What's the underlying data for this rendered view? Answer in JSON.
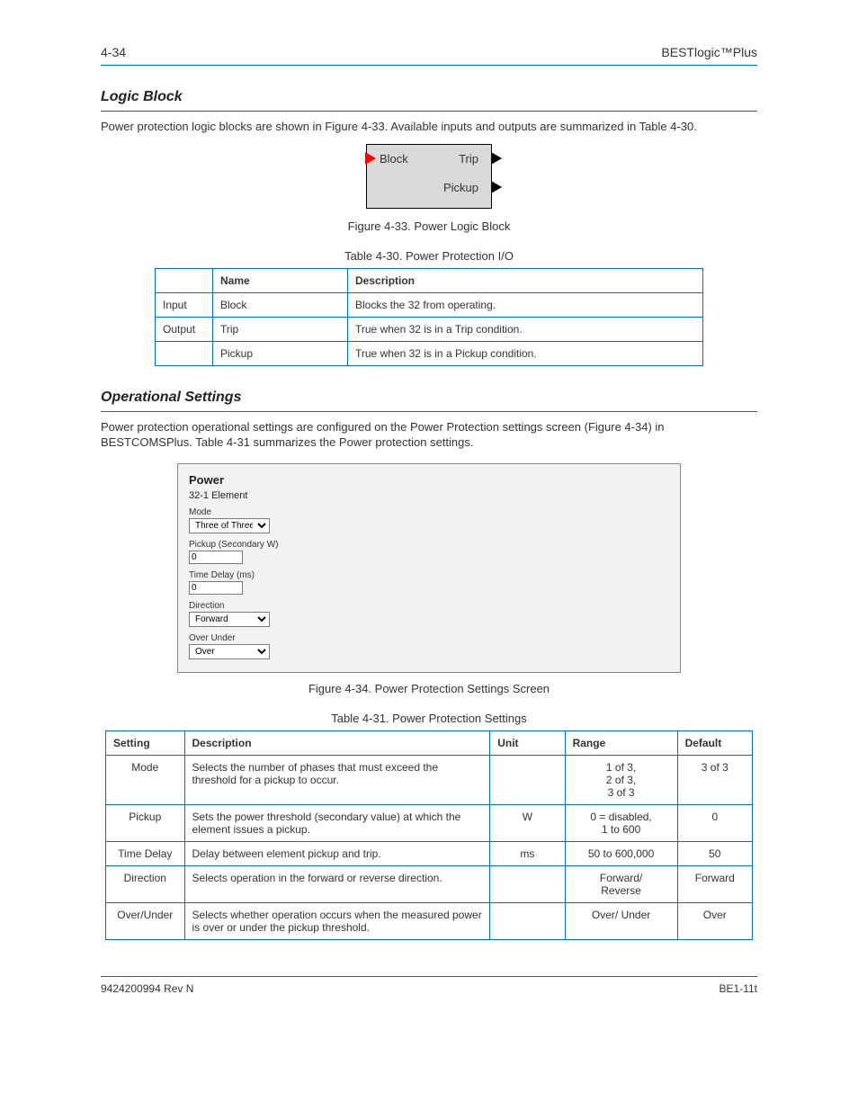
{
  "header": {
    "left": "4-34",
    "right": "BESTlogic™Plus"
  },
  "footer": {
    "left": "9424200994 Rev N",
    "right": "BE1-11t"
  },
  "section_logic": {
    "title": "Logic Block",
    "para": "Power protection logic blocks are shown in Figure 4-33. Available inputs and outputs are summarized in Table 4-30.",
    "ports": {
      "block": "Block",
      "trip": "Trip",
      "pickup": "Pickup"
    },
    "fig_caption": "Figure 4-33. Power Logic Block",
    "tbl_caption": "Table 4-30. Power Protection I/O",
    "io": {
      "headers": [
        "",
        "Name",
        "Description"
      ],
      "rows": [
        [
          "Input",
          "Block",
          "Blocks the 32 from operating."
        ],
        [
          "Output",
          "Trip",
          "True when 32 is in a Trip condition."
        ],
        [
          "",
          "Pickup",
          "True when 32 is in a Pickup condition."
        ]
      ]
    }
  },
  "section_settings": {
    "title": "Operational Settings",
    "para1": "Power protection operational settings are configured on the Power Protection settings screen (Figure 4-34) in BESTCOMSPlus. Table 4-31 summarizes the Power protection settings.",
    "panel": {
      "box_title": "Power",
      "element": "32-1 Element",
      "fields": [
        {
          "label": "Mode",
          "type": "select",
          "value": "Three of Three"
        },
        {
          "label": "Pickup (Secondary W)",
          "type": "input",
          "value": "0"
        },
        {
          "label": "Time Delay (ms)",
          "type": "input",
          "value": "0"
        },
        {
          "label": "Direction",
          "type": "select",
          "value": "Forward"
        },
        {
          "label": "Over Under",
          "type": "select",
          "value": "Over"
        }
      ]
    },
    "fig_caption": "Figure 4-34. Power Protection Settings Screen",
    "tbl_caption": "Table 4-31. Power Protection Settings",
    "settings": {
      "headers": [
        "Setting",
        "Description",
        "Unit",
        "Range",
        "Default"
      ],
      "rows": [
        [
          "Mode",
          "Selects the number of phases that must exceed the threshold for a pickup to occur.",
          "",
          "1 of 3,\n2 of 3,\n3 of 3",
          "3 of 3"
        ],
        [
          "Pickup",
          "Sets the power threshold (secondary value) at which the element issues a pickup.",
          "W",
          "0 = disabled,\n1 to 600",
          "0"
        ],
        [
          "Time Delay",
          "Delay between element pickup and trip.",
          "ms",
          "50 to 600,000",
          "50"
        ],
        [
          "Direction",
          "Selects operation in the forward or reverse direction.",
          "",
          "Forward/\nReverse",
          "Forward"
        ],
        [
          "Over/Under",
          "Selects whether operation occurs when the measured power is over or under the pickup threshold.",
          "",
          "Over/ Under",
          "Over"
        ]
      ]
    }
  }
}
